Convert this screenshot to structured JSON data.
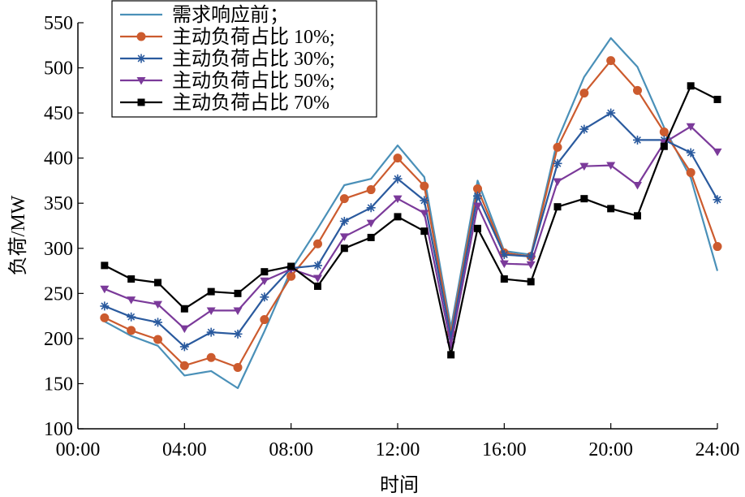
{
  "chart_data": {
    "type": "line",
    "xlabel": "时间",
    "ylabel": "负荷/MW",
    "xlim": [
      0,
      24
    ],
    "ylim": [
      100,
      550
    ],
    "x_ticks": [
      0,
      4,
      8,
      12,
      16,
      20,
      24
    ],
    "x_tick_labels": [
      "00:00",
      "04:00",
      "08:00",
      "12:00",
      "16:00",
      "20:00",
      "24:00"
    ],
    "y_ticks": [
      100,
      150,
      200,
      250,
      300,
      350,
      400,
      450,
      500,
      550
    ],
    "y_tick_labels": [
      "100",
      "150",
      "200",
      "250",
      "300",
      "350",
      "400",
      "450",
      "500",
      "550"
    ],
    "grid": false,
    "legend_position": "top-left",
    "x": [
      1,
      2,
      3,
      4,
      5,
      6,
      7,
      8,
      9,
      10,
      11,
      12,
      13,
      14,
      15,
      16,
      17,
      18,
      19,
      20,
      21,
      22,
      23,
      24
    ],
    "series": [
      {
        "name": "需求响应前；",
        "color": "#4a90b8",
        "marker": "none",
        "values": [
          219,
          203,
          192,
          159,
          164,
          145,
          208,
          276,
          322,
          370,
          377,
          414,
          379,
          212,
          375,
          297,
          293,
          420,
          490,
          533,
          501,
          434,
          378,
          275
        ]
      },
      {
        "name": "主动负荷占比 10%;",
        "color": "#cc5b2e",
        "marker": "circle",
        "values": [
          223,
          209,
          199,
          170,
          179,
          168,
          221,
          269,
          305,
          355,
          365,
          400,
          369,
          206,
          366,
          295,
          291,
          412,
          472,
          508,
          475,
          429,
          384,
          302
        ]
      },
      {
        "name": "主动负荷占比 30%;",
        "color": "#2a5a9e",
        "marker": "asterisk",
        "values": [
          236,
          224,
          218,
          191,
          207,
          205,
          246,
          278,
          281,
          330,
          345,
          377,
          353,
          202,
          358,
          293,
          291,
          394,
          432,
          450,
          420,
          420,
          406,
          354
        ]
      },
      {
        "name": "主动负荷占比 50%;",
        "color": "#7b3a9a",
        "marker": "triangle-down",
        "values": [
          255,
          243,
          238,
          211,
          231,
          231,
          264,
          277,
          267,
          313,
          328,
          355,
          339,
          193,
          347,
          283,
          282,
          374,
          391,
          392,
          370,
          417,
          435,
          407
        ]
      },
      {
        "name": "主动负荷占比 70%",
        "color": "#000000",
        "marker": "square",
        "values": [
          281,
          266,
          262,
          233,
          252,
          250,
          274,
          280,
          258,
          300,
          312,
          335,
          319,
          182,
          322,
          266,
          263,
          346,
          355,
          344,
          336,
          413,
          480,
          465
        ]
      }
    ]
  }
}
